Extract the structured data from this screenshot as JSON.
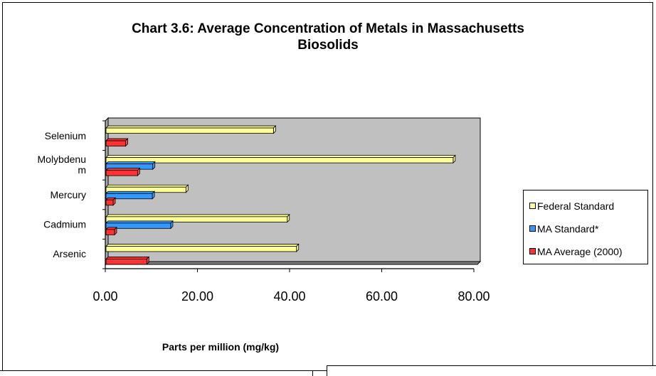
{
  "chart_data": {
    "type": "bar",
    "orientation": "horizontal",
    "title_line1": "Chart 3.6:  Average Concentration of Metals in Massachusetts",
    "title_line2": "Biosolids",
    "xlabel": "Parts per million (mg/kg)",
    "ylabel": "",
    "categories": [
      "Selenium",
      "Molybdenum",
      "Mercury",
      "Cadmium",
      "Arsenic"
    ],
    "category_display": [
      [
        "Selenium"
      ],
      [
        "Molybdenu",
        "m"
      ],
      [
        "Mercury"
      ],
      [
        "Cadmium"
      ],
      [
        "Arsenic"
      ]
    ],
    "series": [
      {
        "name": "Federal Standard",
        "color": "#ffff99",
        "values": [
          36.5,
          75.5,
          17.5,
          39.5,
          41.5
        ]
      },
      {
        "name": "MA Standard*",
        "color": "#3399ff",
        "values": [
          0,
          10.3,
          10.2,
          14.2,
          0
        ]
      },
      {
        "name": "MA Average (2000)",
        "color": "#ff3333",
        "values": [
          4.4,
          7.0,
          1.7,
          2.0,
          9.0
        ]
      }
    ],
    "xlim": [
      0,
      80
    ],
    "xticks": [
      "0.00",
      "20.00",
      "40.00",
      "60.00",
      "80.00"
    ],
    "legend_position": "right",
    "grid": false,
    "plot_background": "#c0c0c0"
  }
}
